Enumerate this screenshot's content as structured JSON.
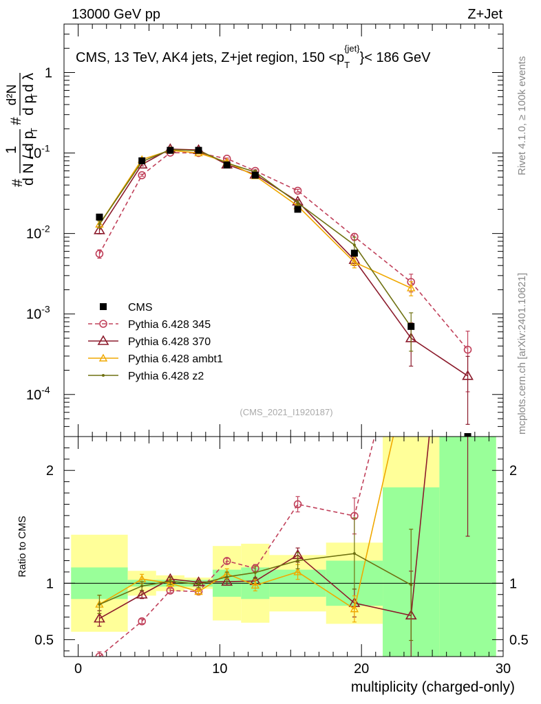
{
  "header": {
    "left": "13000 GeV pp",
    "right": "Z+Jet"
  },
  "side_labels": {
    "rivet": "Rivet 4.1.0, ≥ 100k events",
    "mcplots": "mcplots.cern.ch [arXiv:2401.10621]"
  },
  "chart_data": {
    "type": "line",
    "title": "CMS, 13 TeV, AK4 jets, Z+jet region, 150 <p_T^{jet}< 186 GeV",
    "title_parts": {
      "before": "CMS, 13 TeV, AK4 jets, Z+jet region, 150 <p",
      "sub": "T",
      "sup": "{jet}",
      "after": "}< 186 GeV"
    },
    "watermark": "(CMS_2021_I1920187)",
    "xlabel": "multiplicity (charged-only)",
    "ylabel_top": "1/N dN/dp_T d^2N/dp_T dλ",
    "ylabel_parts": {
      "prefix_left": "#",
      "frac1_num": "1",
      "frac1_den": "d N / d p",
      "sub_T": "T",
      "prefix_mid": "#",
      "frac2_num": "d²N",
      "frac2_den": "d p",
      "frac2_den_end": "d λ"
    },
    "ylabel_ratio": "Ratio to CMS",
    "xlim": [
      -1,
      30
    ],
    "ylim_top": [
      3e-05,
      4
    ],
    "ylim_ratio": [
      0.35,
      2.3
    ],
    "x_ticks": [
      "0",
      "10",
      "20",
      "30"
    ],
    "y_ticks_top": [
      {
        "base": "10",
        "exp": "-4"
      },
      {
        "base": "10",
        "exp": "-3"
      },
      {
        "base": "10",
        "exp": "-2"
      },
      {
        "base": "10",
        "exp": "-1"
      },
      {
        "base": "1",
        "exp": ""
      }
    ],
    "y_ticks_ratio": [
      "0.5",
      "1",
      "2"
    ],
    "bin_edges": [
      -0.5,
      3.5,
      5.5,
      7.5,
      9.5,
      11.5,
      13.5,
      17.5,
      21.5,
      25.5,
      29.5
    ],
    "data": {
      "name": "CMS",
      "x": [
        1.5,
        4.5,
        6.5,
        8.5,
        10.5,
        12.5,
        15.5,
        19.5,
        23.5,
        27.5
      ],
      "y": [
        0.016,
        0.08,
        0.108,
        0.108,
        0.071,
        0.053,
        0.02,
        0.0057,
        0.0007,
        3e-05
      ],
      "band_inner": [
        0.14,
        0.03,
        0.03,
        0.03,
        0.12,
        0.14,
        0.12,
        0.2,
        0.85,
        1.5
      ],
      "band_outer": [
        0.43,
        0.11,
        0.07,
        0.05,
        0.33,
        0.35,
        0.25,
        0.36,
        1.5,
        1.5
      ]
    },
    "series": [
      {
        "name": "Pythia 6.428 345",
        "color": "#c0405a",
        "marker": "circle",
        "dashed": true,
        "x": [
          1.5,
          4.5,
          6.5,
          8.5,
          10.5,
          12.5,
          15.5,
          19.5,
          23.5,
          27.5
        ],
        "y": [
          0.0056,
          0.053,
          0.101,
          0.1,
          0.085,
          0.06,
          0.034,
          0.0091,
          0.0025,
          0.00036
        ],
        "yerr": [
          0.12,
          0.03,
          0.02,
          0.02,
          0.02,
          0.03,
          0.04,
          0.1,
          0.25,
          0.7
        ]
      },
      {
        "name": "Pythia 6.428 370",
        "color": "#8b1a2b",
        "marker": "triangle-open",
        "dashed": false,
        "x": [
          1.5,
          4.5,
          6.5,
          8.5,
          10.5,
          12.5,
          15.5,
          19.5,
          23.5,
          27.5
        ],
        "y": [
          0.011,
          0.072,
          0.112,
          0.109,
          0.072,
          0.054,
          0.025,
          0.0047,
          0.0005,
          0.00017
        ],
        "yerr": [
          0.1,
          0.04,
          0.02,
          0.02,
          0.03,
          0.03,
          0.05,
          0.15,
          0.55,
          0.75
        ]
      },
      {
        "name": "Pythia 6.428 ambt1",
        "color": "#f0a800",
        "marker": "triangle-open-small",
        "dashed": false,
        "x": [
          1.5,
          4.5,
          6.5,
          8.5,
          10.5,
          12.5,
          15.5,
          19.5,
          23.5
        ],
        "y": [
          0.013,
          0.083,
          0.108,
          0.1,
          0.077,
          0.052,
          0.022,
          0.0044,
          0.0021
        ],
        "yerr": [
          0.1,
          0.04,
          0.03,
          0.03,
          0.04,
          0.05,
          0.06,
          0.15,
          0.2
        ]
      },
      {
        "name": "Pythia 6.428 z2",
        "color": "#6e7010",
        "marker": "dot",
        "dashed": false,
        "x": [
          1.5,
          4.5,
          6.5,
          8.5,
          10.5,
          12.5,
          15.5,
          19.5,
          23.5
        ],
        "y": [
          0.013,
          0.078,
          0.11,
          0.107,
          0.075,
          0.058,
          0.024,
          0.0072,
          0.00069
        ],
        "yerr": [
          0.1,
          0.04,
          0.03,
          0.03,
          0.04,
          0.05,
          0.06,
          0.25,
          0.5
        ]
      }
    ],
    "legend": [
      {
        "label": "CMS"
      },
      {
        "label": "Pythia 6.428 345"
      },
      {
        "label": "Pythia 6.428 370"
      },
      {
        "label": "Pythia 6.428 ambt1"
      },
      {
        "label": "Pythia 6.428 z2"
      }
    ],
    "legend_position": "left-center"
  },
  "colors": {
    "band_inner": "#99ff99",
    "band_outer": "#ffff99",
    "axis": "#000000"
  }
}
